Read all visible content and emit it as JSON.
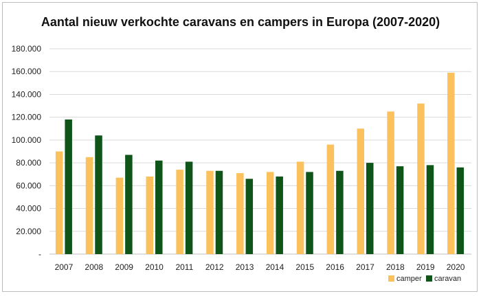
{
  "chart_data": {
    "type": "bar",
    "title": "Aantal nieuw verkochte caravans en campers in Europa (2007-2020)",
    "xlabel": "",
    "ylabel": "",
    "categories": [
      "2007",
      "2008",
      "2009",
      "2010",
      "2011",
      "2012",
      "2013",
      "2014",
      "2015",
      "2016",
      "2017",
      "2018",
      "2019",
      "2020"
    ],
    "series": [
      {
        "name": "camper",
        "color": "#fbc15c",
        "values": [
          90000,
          85000,
          67000,
          68000,
          74000,
          73000,
          71000,
          72000,
          81000,
          96000,
          110000,
          125000,
          132000,
          159000
        ]
      },
      {
        "name": "caravan",
        "color": "#0f5418",
        "values": [
          118000,
          104000,
          87000,
          82000,
          81000,
          73000,
          66000,
          68000,
          72000,
          73000,
          80000,
          77000,
          78000,
          76000
        ]
      }
    ],
    "ylim": [
      0,
      180000
    ],
    "yticks": [
      0,
      20000,
      40000,
      60000,
      80000,
      100000,
      120000,
      140000,
      160000,
      180000
    ],
    "ytick_labels": [
      "-",
      "20.000",
      "40.000",
      "60.000",
      "80.000",
      "100.000",
      "120.000",
      "140.000",
      "160.000",
      "180.000"
    ],
    "grid": true,
    "legend_position": "bottom-right"
  }
}
